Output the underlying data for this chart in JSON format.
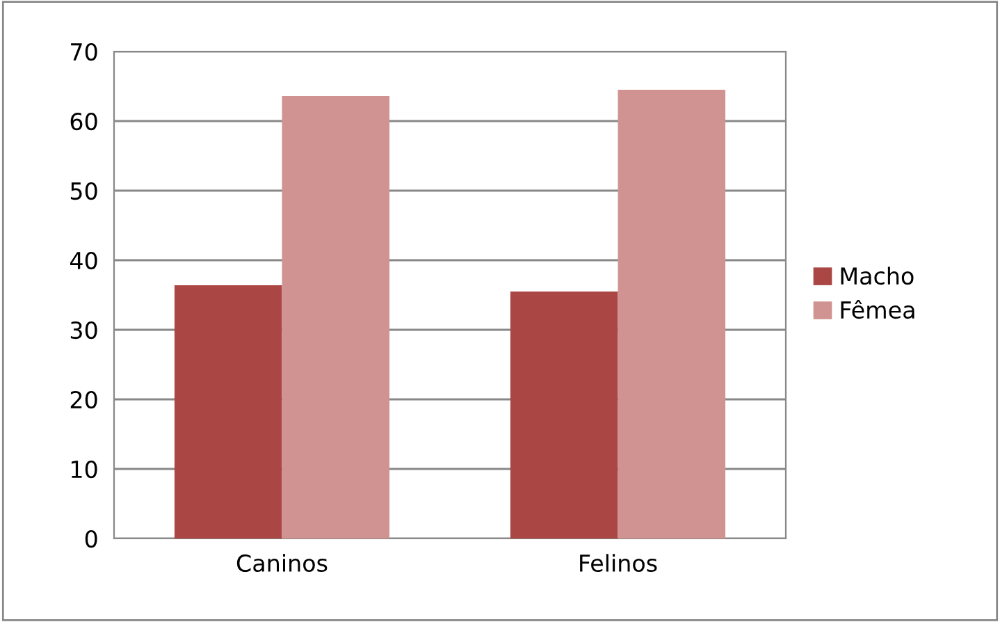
{
  "chart_data": {
    "type": "bar",
    "categories": [
      "Caninos",
      "Felinos"
    ],
    "series": [
      {
        "name": "Macho",
        "color": "#aa4643",
        "values": [
          36.4,
          35.5
        ]
      },
      {
        "name": "Fêmea",
        "color": "#d19392",
        "values": [
          63.6,
          64.5
        ]
      }
    ],
    "ylim": [
      0,
      70
    ],
    "yticks": [
      0,
      10,
      20,
      30,
      40,
      50,
      60,
      70
    ],
    "grid": "y",
    "legend": "right"
  }
}
